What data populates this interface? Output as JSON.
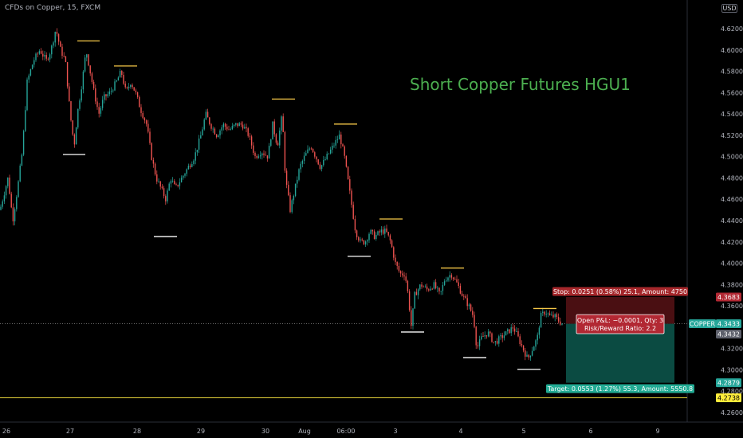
{
  "header": {
    "symbol_label": "CFDs on Copper, 15, FXCM",
    "currency_badge": "USD"
  },
  "annotation": {
    "headline": "Short Copper Futures HGU1"
  },
  "position": {
    "stop_label": "Stop: 0.0251 (0.58%) 25.1, Amount: 4750",
    "pnl_line1": "Open P&L: −0.0001, Qty: 3",
    "pnl_line2": "Risk/Reward Ratio: 2.2",
    "target_label": "Target: 0.0553 (1.27%) 55.3, Amount: 5550.8",
    "entry_price": 4.3432,
    "stop_price": 4.3683,
    "target_price": 4.2879,
    "stop_color": "#a5272b",
    "stop_fill": "#4a0f12",
    "target_color": "#22ab94",
    "target_fill": "#0b4b42"
  },
  "price_scale": {
    "ticks": [
      "4.6200",
      "4.6000",
      "4.5800",
      "4.5600",
      "4.5400",
      "4.5200",
      "4.5000",
      "4.4800",
      "4.4600",
      "4.4400",
      "4.4200",
      "4.4000",
      "4.3800",
      "4.3600",
      "4.3200",
      "4.3000",
      "4.2800",
      "4.2600"
    ],
    "tick_values": [
      4.62,
      4.6,
      4.58,
      4.56,
      4.54,
      4.52,
      4.5,
      4.48,
      4.46,
      4.44,
      4.42,
      4.4,
      4.38,
      4.36,
      4.32,
      4.3,
      4.28,
      4.26
    ],
    "min": 4.255,
    "max": 4.632,
    "badges": [
      {
        "label": "4.3683",
        "value": 4.3683,
        "color": "#b22833",
        "text_color": "#ffffff"
      },
      {
        "label": "COPPER",
        "value": 4.3433,
        "color": "#26a69a",
        "text_color": "#ffffff",
        "left": true
      },
      {
        "label": "4.3433",
        "value": 4.3433,
        "color": "#26a69a",
        "text_color": "#ffffff"
      },
      {
        "label": "4.3432",
        "value": 4.3336,
        "color": "#5d606b",
        "text_color": "#ffffff"
      },
      {
        "label": "4.2879",
        "value": 4.2879,
        "color": "#26a69a",
        "text_color": "#ffffff"
      },
      {
        "label": "4.2738",
        "value": 4.2738,
        "color": "#ffeb3b",
        "text_color": "#000000"
      }
    ]
  },
  "time_scale": {
    "labels": [
      "26",
      "27",
      "28",
      "29",
      "30",
      "Aug",
      "06:00",
      "3",
      "4",
      "5",
      "6",
      "9"
    ]
  },
  "levels": {
    "current_price": 4.3433,
    "support_price": 4.2738
  },
  "chart_data": {
    "type": "candlestick",
    "title": "CFDs on Copper, 15, FXCM",
    "ylim": [
      4.255,
      4.632
    ],
    "ohlc_path": [
      [
        0,
        4.45
      ],
      [
        10,
        4.48
      ],
      [
        16,
        4.44
      ],
      [
        22,
        4.47
      ],
      [
        28,
        4.505
      ],
      [
        34,
        4.57
      ],
      [
        42,
        4.59
      ],
      [
        50,
        4.6
      ],
      [
        58,
        4.59
      ],
      [
        64,
        4.6
      ],
      [
        70,
        4.62
      ],
      [
        76,
        4.6
      ],
      [
        82,
        4.59
      ],
      [
        88,
        4.54
      ],
      [
        93,
        4.51
      ],
      [
        97,
        4.54
      ],
      [
        103,
        4.57
      ],
      [
        108,
        4.6
      ],
      [
        113,
        4.58
      ],
      [
        118,
        4.56
      ],
      [
        124,
        4.54
      ],
      [
        130,
        4.555
      ],
      [
        138,
        4.56
      ],
      [
        146,
        4.57
      ],
      [
        152,
        4.58
      ],
      [
        158,
        4.56
      ],
      [
        164,
        4.57
      ],
      [
        170,
        4.56
      ],
      [
        176,
        4.545
      ],
      [
        184,
        4.53
      ],
      [
        190,
        4.5
      ],
      [
        196,
        4.48
      ],
      [
        202,
        4.47
      ],
      [
        208,
        4.46
      ],
      [
        214,
        4.48
      ],
      [
        220,
        4.47
      ],
      [
        228,
        4.48
      ],
      [
        236,
        4.49
      ],
      [
        244,
        4.5
      ],
      [
        252,
        4.52
      ],
      [
        258,
        4.54
      ],
      [
        264,
        4.53
      ],
      [
        272,
        4.52
      ],
      [
        280,
        4.53
      ],
      [
        288,
        4.525
      ],
      [
        296,
        4.53
      ],
      [
        304,
        4.53
      ],
      [
        312,
        4.52
      ],
      [
        320,
        4.5
      ],
      [
        328,
        4.505
      ],
      [
        336,
        4.5
      ],
      [
        342,
        4.53
      ],
      [
        348,
        4.51
      ],
      [
        354,
        4.54
      ],
      [
        358,
        4.48
      ],
      [
        364,
        4.45
      ],
      [
        370,
        4.47
      ],
      [
        376,
        4.49
      ],
      [
        382,
        4.5
      ],
      [
        390,
        4.51
      ],
      [
        396,
        4.5
      ],
      [
        402,
        4.49
      ],
      [
        410,
        4.5
      ],
      [
        418,
        4.51
      ],
      [
        426,
        4.52
      ],
      [
        432,
        4.5
      ],
      [
        436,
        4.48
      ],
      [
        440,
        4.46
      ],
      [
        446,
        4.43
      ],
      [
        452,
        4.42
      ],
      [
        458,
        4.42
      ],
      [
        464,
        4.43
      ],
      [
        470,
        4.425
      ],
      [
        478,
        4.43
      ],
      [
        484,
        4.43
      ],
      [
        490,
        4.42
      ],
      [
        496,
        4.4
      ],
      [
        502,
        4.39
      ],
      [
        508,
        4.39
      ],
      [
        512,
        4.37
      ],
      [
        516,
        4.34
      ],
      [
        520,
        4.37
      ],
      [
        528,
        4.38
      ],
      [
        536,
        4.375
      ],
      [
        544,
        4.38
      ],
      [
        552,
        4.37
      ],
      [
        558,
        4.385
      ],
      [
        566,
        4.39
      ],
      [
        574,
        4.38
      ],
      [
        580,
        4.37
      ],
      [
        588,
        4.36
      ],
      [
        594,
        4.35
      ],
      [
        598,
        4.32
      ],
      [
        604,
        4.33
      ],
      [
        612,
        4.335
      ],
      [
        620,
        4.325
      ],
      [
        628,
        4.33
      ],
      [
        636,
        4.335
      ],
      [
        644,
        4.34
      ],
      [
        650,
        4.33
      ],
      [
        656,
        4.32
      ],
      [
        662,
        4.31
      ],
      [
        668,
        4.32
      ],
      [
        674,
        4.33
      ],
      [
        678,
        4.35
      ],
      [
        684,
        4.355
      ],
      [
        690,
        4.35
      ],
      [
        696,
        4.35
      ],
      [
        702,
        4.345
      ],
      [
        706,
        4.343
      ]
    ],
    "swing_highs": [
      {
        "x": [
          97,
          125
        ],
        "price": 4.6085
      },
      {
        "x": [
          143,
          172
        ],
        "price": 4.585
      },
      {
        "x": [
          341,
          370
        ],
        "price": 4.554
      },
      {
        "x": [
          419,
          448
        ],
        "price": 4.5305
      },
      {
        "x": [
          476,
          505
        ],
        "price": 4.4415
      },
      {
        "x": [
          553,
          582
        ],
        "price": 4.3955
      },
      {
        "x": [
          669,
          698
        ],
        "price": 4.3575
      }
    ],
    "swing_lows": [
      {
        "x": [
          79,
          107
        ],
        "price": 4.502
      },
      {
        "x": [
          193,
          222
        ],
        "price": 4.425
      },
      {
        "x": [
          436,
          465
        ],
        "price": 4.4065
      },
      {
        "x": [
          503,
          532
        ],
        "price": 4.3355
      },
      {
        "x": [
          581,
          610
        ],
        "price": 4.3115
      },
      {
        "x": [
          649,
          678
        ],
        "price": 4.3005
      }
    ]
  }
}
